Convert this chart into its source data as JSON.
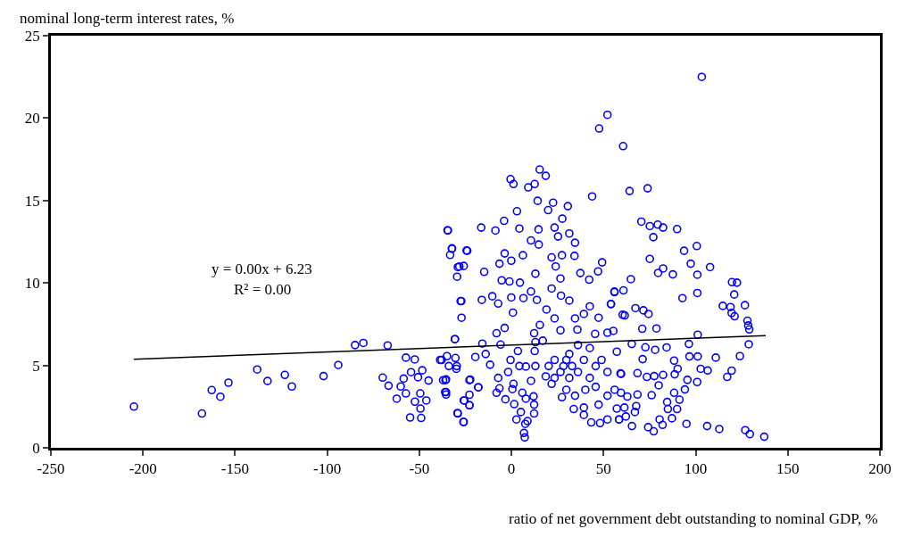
{
  "chart_data": {
    "type": "scatter",
    "xlabel": "ratio of net government debt outstanding to nominal GDP, %",
    "ylabel": "nominal long-term interest rates, %",
    "annotations": [
      "y = 0.00x + 6.23",
      "R² = 0.00"
    ],
    "xlim": [
      -250,
      200
    ],
    "xticks": [
      -250,
      -200,
      -150,
      -100,
      -50,
      0,
      50,
      100,
      150,
      200
    ],
    "ylim": [
      0,
      25
    ],
    "yticks": [
      0,
      5,
      10,
      15,
      20,
      25
    ],
    "marker": "circle",
    "series": [
      {
        "color": "#0000ff",
        "x": [
          -204.9,
          -168,
          -162.7,
          -158,
          -153.6,
          -138,
          -132.4,
          -123,
          -119.2,
          -102,
          -94,
          -84.9,
          -80.4,
          -67.2,
          -57.3,
          -52.5,
          -69.9,
          -66.7,
          -62.3,
          -60.1,
          -58.5,
          -57.3,
          -54.5,
          -50.7,
          -48.4,
          -45,
          -49.5,
          -52.4,
          -46.2,
          -49.4,
          -55,
          -49,
          -37.9,
          -35,
          -30.4,
          -30.7,
          -37.1,
          -35.5,
          -36,
          -35.5,
          -29.3,
          -26.1,
          -22.8,
          -22.8,
          -25.6,
          -22.4,
          -18,
          -34.7,
          -32.3,
          -33.3,
          -24,
          -29.1,
          -25.9,
          -29.5,
          -27.2,
          -27.1,
          -29.7,
          15.3,
          18.6,
          -0.5,
          1.1,
          9.1,
          12.6,
          43.8,
          14.2,
          22.6,
          19.9,
          30.6,
          3.0,
          -34.5,
          -16.4,
          -4,
          -8.7,
          4.3,
          14.7,
          23.4,
          27.6,
          31.4,
          25.3,
          34.5,
          10.6,
          14.8,
          -32.3,
          -24.4,
          6.2,
          -3.7,
          21.8,
          27.4,
          34.2,
          49.2,
          47,
          24,
          -28.3,
          -14.8,
          -6.5,
          -0.1,
          13,
          37.4,
          42.2,
          55.9,
          54,
          60.3,
          -5.3,
          -1.1,
          4.6,
          21.8,
          26.6,
          -27.6,
          -16.1,
          -10.4,
          -7.2,
          -0.1,
          0.8,
          6.5,
          10.6,
          13.8,
          19,
          26.9,
          31.4,
          42.5,
          39.3,
          47.3,
          34.5,
          23.4,
          15.4,
          -3.7,
          -8.1,
          -30.7,
          -15.8,
          -5.9,
          12.3,
          17,
          26.6,
          35.8,
          45.4,
          52.1,
          55.3,
          57.2,
          -38.7,
          -34,
          -29.9,
          -35.8,
          -35.5,
          -22.8,
          -18,
          -25.9,
          -22.8,
          -29.1,
          -25.9,
          -19.6,
          -14,
          -11.6,
          -7.2,
          -8.1,
          -3.3,
          -6.5,
          -1.8,
          -0.5,
          3.5,
          4.3,
          1.1,
          0.5,
          1.5,
          2.7,
          5.1,
          7.5,
          7.2,
          6.8,
          8.7,
          5.9,
          7.8,
          12,
          12.3,
          12.3,
          10.6,
          7.8,
          13,
          12.6,
          13,
          18.6,
          20.2,
          23.4,
          26.6,
          29.8,
          32.9,
          36.1,
          39.3,
          42.5,
          45.7,
          48.9,
          52.1,
          31.4,
          36.1,
          42.5,
          29.8,
          34.5,
          21.8,
          27.4,
          39.3,
          47.3,
          52.1,
          33.8,
          39.3,
          43.3,
          48.1,
          52.1,
          58.4,
          59.2,
          56,
          31.4,
          28.2,
          23.4,
          40.1,
          45.7,
          103.3,
          52.1,
          47.6,
          60.6,
          64.1,
          73.9,
          70.5,
          75.1,
          79.4,
          82.3,
          89.9,
          77,
          93.7,
          100.6,
          75.1,
          82.3,
          79.6,
          87.6,
          97.3,
          100.9,
          107.8,
          64.8,
          55.9,
          60.8,
          100.9,
          92.8,
          119.7,
          122.4,
          120.9,
          114.7,
          118.9,
          119.5,
          121.1,
          126.7,
          128.1,
          128.5,
          129.1,
          128.8,
          67.3,
          71.6,
          74.4,
          61.5,
          54,
          71,
          78.7,
          101.1,
          96.3,
          65.3,
          72.7,
          78,
          84.2,
          110.9,
          124,
          119.5,
          117.1,
          106.5,
          101.1,
          96.6,
          71.2,
          88.3,
          102.7,
          90.2,
          59.5,
          68.4,
          73.5,
          77.5,
          82.3,
          88.6,
          95.5,
          100.8,
          79.9,
          94.1,
          68.4,
          76.1,
          88.3,
          91.2,
          62.9,
          59.4,
          84.5,
          67.7,
          57.2,
          61.3,
          67,
          84.9,
          89.9,
          58.4,
          62.1,
          65.4,
          74.2,
          77.2,
          80.4,
          82,
          87.1,
          95,
          106.2,
          112.8,
          126.9,
          129.4,
          137.2
        ],
        "values": [
          2.5,
          2.08,
          3.5,
          3.1,
          3.95,
          4.75,
          4.05,
          4.42,
          3.72,
          4.35,
          5.02,
          6.23,
          6.36,
          6.21,
          5.47,
          5.36,
          4.26,
          3.77,
          2.98,
          3.72,
          4.2,
          3.3,
          4.59,
          4.28,
          4.7,
          4.08,
          3.3,
          2.8,
          2.87,
          2.38,
          1.84,
          1.81,
          5.33,
          5.56,
          5.45,
          6.59,
          4.1,
          4.15,
          3.38,
          3.23,
          2.11,
          1.57,
          2.58,
          3.22,
          2.87,
          4.14,
          3.67,
          13.2,
          12.07,
          11.7,
          11.95,
          10.96,
          11.03,
          10.38,
          8.9,
          7.89,
          4.96,
          16.88,
          16.5,
          16.3,
          16.0,
          15.8,
          16.0,
          15.25,
          14.98,
          14.87,
          14.42,
          14.66,
          14.35,
          13.18,
          13.36,
          13.77,
          13.18,
          13.3,
          13.25,
          13.36,
          13.9,
          13.0,
          12.82,
          12.44,
          12.58,
          12.33,
          12.1,
          11.97,
          11.68,
          11.79,
          11.55,
          11.68,
          11.64,
          11.25,
          10.7,
          11.0,
          11.0,
          10.67,
          11.17,
          11.35,
          10.56,
          10.6,
          10.2,
          9.48,
          8.72,
          8.07,
          10.16,
          10.09,
          10.02,
          9.66,
          10.27,
          8.9,
          8.97,
          9.19,
          8.75,
          9.12,
          8.2,
          9.08,
          9.48,
          8.97,
          8.39,
          9.23,
          8.93,
          8.58,
          8.12,
          7.89,
          7.85,
          7.85,
          7.45,
          7.27,
          6.95,
          6.59,
          6.32,
          6.26,
          6.95,
          6.5,
          7.13,
          7.17,
          6.91,
          6.98,
          7.09,
          5.83,
          5.33,
          4.96,
          4.79,
          4.1,
          3.38,
          4.1,
          3.67,
          2.87,
          2.58,
          2.08,
          1.57,
          5.51,
          5.69,
          5.04,
          4.24,
          3.34,
          2.94,
          3.61,
          4.6,
          5.33,
          5.87,
          4.96,
          3.88,
          3.56,
          2.65,
          1.72,
          2.17,
          1.45,
          0.63,
          0.9,
          1.62,
          3.34,
          2.98,
          3.12,
          2.62,
          2.08,
          4.06,
          4.93,
          4.96,
          5.87,
          6.41,
          4.33,
          4.96,
          5.33,
          4.6,
          5.33,
          4.96,
          4.6,
          5.33,
          4.24,
          4.96,
          5.33,
          4.6,
          5.69,
          6.23,
          6.05,
          3.52,
          3.16,
          3.88,
          3.07,
          2.44,
          2.62,
          3.16,
          2.35,
          1.99,
          1.54,
          1.5,
          1.72,
          1.72,
          4.51,
          3.52,
          4.24,
          4.96,
          4.24,
          3.52,
          3.7,
          22.5,
          20.2,
          19.37,
          18.3,
          15.58,
          15.74,
          13.72,
          13.45,
          13.54,
          13.36,
          13.27,
          12.78,
          11.95,
          12.24,
          11.46,
          10.88,
          10.61,
          10.52,
          11.17,
          10.5,
          10.96,
          10.23,
          9.44,
          9.55,
          9.39,
          9.08,
          10.05,
          10.02,
          9.3,
          8.61,
          8.54,
          8.18,
          7.98,
          8.65,
          7.71,
          7.42,
          7.18,
          6.28,
          8.47,
          8.34,
          8.12,
          8.03,
          8.72,
          7.22,
          7.24,
          6.86,
          6.3,
          6.3,
          6.1,
          5.94,
          6.09,
          5.47,
          5.56,
          4.68,
          4.3,
          4.69,
          5.54,
          5.54,
          5.38,
          5.29,
          4.79,
          4.79,
          4.48,
          4.53,
          4.3,
          4.35,
          4.42,
          4.46,
          4.12,
          3.99,
          3.79,
          3.54,
          3.23,
          3.19,
          3.34,
          2.92,
          3.11,
          3.34,
          2.78,
          2.53,
          2.38,
          2.44,
          2.17,
          2.35,
          2.35,
          1.72,
          1.9,
          1.32,
          1.25,
          1.0,
          1.72,
          1.39,
          1.79,
          1.45,
          1.32,
          1.14,
          1.07,
          0.83,
          0.67
        ]
      },
      {
        "type": "line",
        "color": "#000000",
        "marker": "none",
        "x": [
          -205,
          138
        ],
        "values": [
          5.37,
          6.81
        ]
      }
    ]
  }
}
